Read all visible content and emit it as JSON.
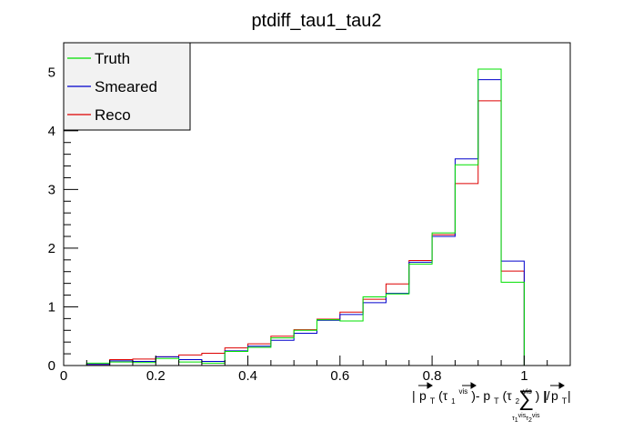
{
  "chart_data": {
    "type": "histogram",
    "title": "ptdiff_tau1_tau2",
    "xlabel": "| p_T(τ1^vis)-p_T(τ2^vis) |/ Σ_{τ1^vis,τ2^vis} | p_T |",
    "xlabel_parts": {
      "bar1": "|",
      "p": "p",
      "t1": "T",
      "tau1": "(τ",
      "s1": "1",
      "vis1": "vis",
      "close1": ")-",
      "p2": "p",
      "t2": "T",
      "tau2": "(τ",
      "s2": "2",
      "vis2": "vis",
      "close2": ") |/",
      "sum": "∑",
      "sumsub": "τ",
      "sumsub_s1": "1",
      "sumsub_vis1": "vis",
      "sumsub_tau2": "τ",
      "sumsub_s2": "2",
      "sumsub_vis2": "vis",
      "bar3": "|",
      "p3": "p",
      "t3": "T",
      "bar4": "|"
    },
    "xlim": [
      0,
      1.1
    ],
    "ylim": [
      0,
      5.5
    ],
    "bin_edges": [
      0.05,
      0.1,
      0.15,
      0.2,
      0.25,
      0.3,
      0.35,
      0.4,
      0.45,
      0.5,
      0.55,
      0.6,
      0.65,
      0.7,
      0.75,
      0.8,
      0.85,
      0.9,
      0.95,
      1.0
    ],
    "x_ticks": [
      0,
      0.2,
      0.4,
      0.6,
      0.8,
      1
    ],
    "y_ticks": [
      0,
      1,
      2,
      3,
      4,
      5
    ],
    "series": [
      {
        "name": "Truth",
        "color": "#00e000",
        "values": [
          0.04,
          0.06,
          0.05,
          0.12,
          0.06,
          0.04,
          0.24,
          0.31,
          0.47,
          0.6,
          0.78,
          0.76,
          1.17,
          1.22,
          1.73,
          2.26,
          3.42,
          5.05,
          1.42
        ]
      },
      {
        "name": "Smeared",
        "color": "#0000cc",
        "values": [
          0.02,
          0.08,
          0.07,
          0.15,
          0.1,
          0.07,
          0.25,
          0.33,
          0.43,
          0.55,
          0.77,
          0.87,
          1.07,
          1.23,
          1.76,
          2.2,
          3.52,
          4.87,
          1.78
        ]
      },
      {
        "name": "Reco",
        "color": "#dd0000",
        "values": [
          0.02,
          0.1,
          0.11,
          0.15,
          0.18,
          0.21,
          0.3,
          0.37,
          0.5,
          0.61,
          0.79,
          0.91,
          1.13,
          1.39,
          1.79,
          2.23,
          3.1,
          4.51,
          1.61
        ]
      }
    ],
    "legend_position": "top-left",
    "grid": false
  }
}
